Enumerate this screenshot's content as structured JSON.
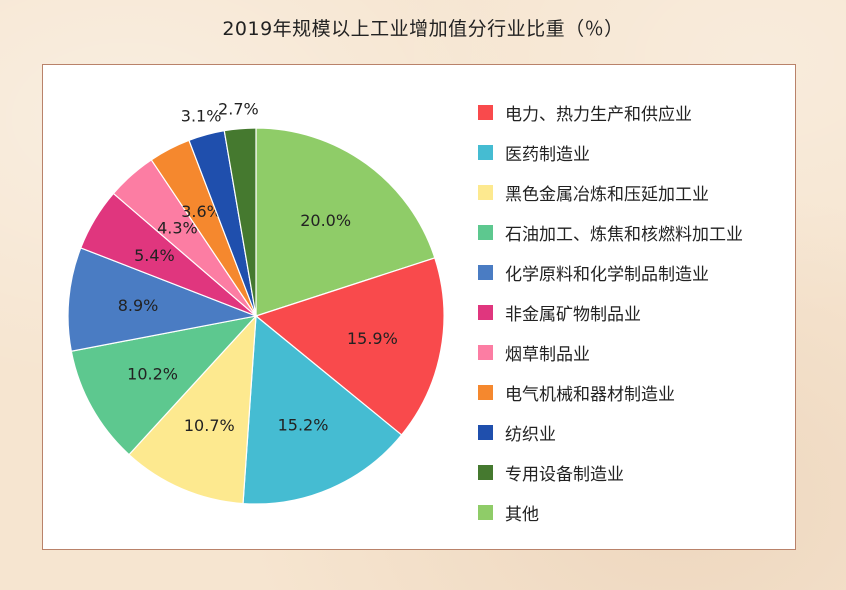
{
  "chart_data": {
    "type": "pie",
    "title": "2019年规模以上工业增加值分行业比重（％）",
    "slices": [
      {
        "label": "其他",
        "value": 20.0,
        "value_label": "20.0%",
        "color": "#8fcc68"
      },
      {
        "label": "电力、热力生产和供应业",
        "value": 15.9,
        "value_label": "15.9%",
        "color": "#f94a4c"
      },
      {
        "label": "医药制造业",
        "value": 15.2,
        "value_label": "15.2%",
        "color": "#45bcd2"
      },
      {
        "label": "黑色金属冶炼和压延加工业",
        "value": 10.7,
        "value_label": "10.7%",
        "color": "#fde98f"
      },
      {
        "label": "石油加工、炼焦和核燃料加工业",
        "value": 10.2,
        "value_label": "10.2%",
        "color": "#5dc88f"
      },
      {
        "label": "化学原料和化学制品制造业",
        "value": 8.9,
        "value_label": "8.9%",
        "color": "#4a7cc3"
      },
      {
        "label": "非金属矿物制品业",
        "value": 5.4,
        "value_label": "5.4%",
        "color": "#e0367e"
      },
      {
        "label": "烟草制品业",
        "value": 4.3,
        "value_label": "4.3%",
        "color": "#fc7da3"
      },
      {
        "label": "电气机械和器材制造业",
        "value": 3.6,
        "value_label": "3.6%",
        "color": "#f5882e"
      },
      {
        "label": "纺织业",
        "value": 3.1,
        "value_label": "3.1%",
        "color": "#1f4fad"
      },
      {
        "label": "专用设备制造业",
        "value": 2.7,
        "value_label": "2.7%",
        "color": "#45792f"
      }
    ],
    "legend_order": [
      "电力、热力生产和供应业",
      "医药制造业",
      "黑色金属冶炼和压延加工业",
      "石油加工、炼焦和核燃料加工业",
      "化学原料和化学制品制造业",
      "非金属矿物制品业",
      "烟草制品业",
      "电气机械和器材制造业",
      "纺织业",
      "专用设备制造业",
      "其他"
    ],
    "legend_position": "right"
  }
}
